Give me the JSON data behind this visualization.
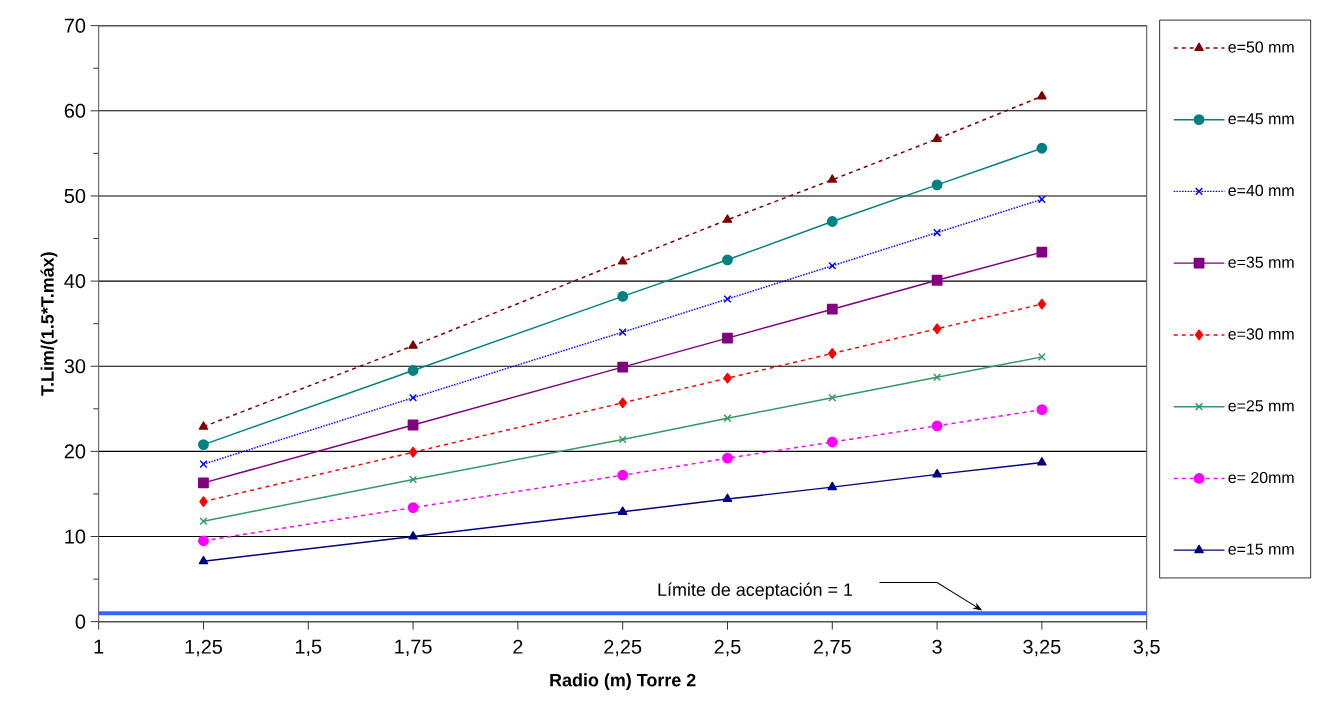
{
  "chart_data": {
    "type": "line",
    "xlabel": "Radio (m) Torre 2",
    "ylabel": "T.Lim/(1.5*T.máx)",
    "x": [
      1.25,
      1.75,
      2.25,
      2.5,
      2.75,
      3,
      3.25
    ],
    "series": [
      {
        "name": "e=50 mm",
        "color": "#800000",
        "marker": "triangle",
        "line_style": "dashed",
        "values": [
          22.9,
          32.4,
          42.3,
          47.2,
          51.9,
          56.7,
          61.7
        ]
      },
      {
        "name": "e=45 mm",
        "color": "#008080",
        "marker": "circle",
        "line_style": "solid",
        "values": [
          20.8,
          29.5,
          38.2,
          42.5,
          47.0,
          51.3,
          55.6
        ]
      },
      {
        "name": "e=40 mm",
        "color": "#0000ff",
        "marker": "cross",
        "line_style": "dotted",
        "values": [
          18.5,
          26.3,
          34.0,
          37.9,
          41.8,
          45.7,
          49.6
        ]
      },
      {
        "name": "e=35 mm",
        "color": "#800080",
        "marker": "square",
        "line_style": "solid",
        "values": [
          16.3,
          23.1,
          29.9,
          33.3,
          36.7,
          40.1,
          43.4
        ]
      },
      {
        "name": "e=30 mm",
        "color": "#ff0000",
        "marker": "diamond",
        "line_style": "dashed",
        "values": [
          14.1,
          19.9,
          25.7,
          28.6,
          31.5,
          34.4,
          37.3
        ]
      },
      {
        "name": "e=25 mm",
        "color": "#339966",
        "marker": "cross",
        "line_style": "solid",
        "values": [
          11.8,
          16.7,
          21.4,
          23.9,
          26.3,
          28.7,
          31.1
        ]
      },
      {
        "name": "e= 20mm",
        "color": "#ff00ff",
        "marker": "circle",
        "line_style": "dashed",
        "values": [
          9.5,
          13.4,
          17.2,
          19.2,
          21.1,
          23.0,
          24.9
        ]
      },
      {
        "name": "e=15 mm",
        "color": "#000080",
        "marker": "triangle",
        "line_style": "solid",
        "values": [
          7.1,
          10.0,
          12.9,
          14.4,
          15.8,
          17.3,
          18.7
        ]
      }
    ],
    "xlim": [
      1,
      3.5
    ],
    "xticks": [
      1,
      {
        "value": 1.25,
        "label": "1,25"
      },
      {
        "value": 1.5,
        "label": "1,5"
      },
      {
        "value": 1.75,
        "label": "1,75"
      },
      2,
      {
        "value": 2.25,
        "label": "2,25"
      },
      {
        "value": 2.5,
        "label": "2,5"
      },
      {
        "value": 2.75,
        "label": "2,75"
      },
      3,
      {
        "value": 3.25,
        "label": "3,25"
      },
      {
        "value": 3.5,
        "label": "3,5"
      }
    ],
    "ylim": [
      0,
      70
    ],
    "yticks": [
      0,
      10,
      20,
      30,
      40,
      50,
      60,
      70
    ],
    "grid": "y",
    "legend": "right",
    "ref_lines": [
      {
        "axis": "y",
        "value": 1,
        "label": "Límite de aceptación = 1",
        "color": "#3366ff",
        "line_style": "solid"
      }
    ]
  }
}
